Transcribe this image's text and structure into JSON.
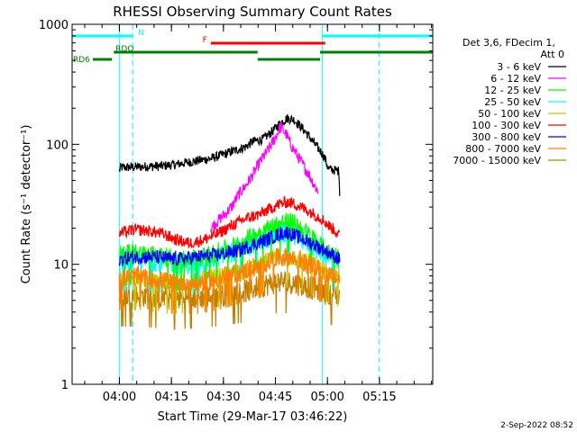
{
  "chart_data": {
    "type": "line",
    "title": "RHESSI Observing Summary Count Rates",
    "xlabel": "Start Time (29-Mar-17 03:46:22)",
    "ylabel": "Count Rate (s⁻¹ detector⁻¹)",
    "yscale": "log",
    "ylim": [
      1,
      1000
    ],
    "xlim_minutes": [
      0,
      104
    ],
    "yticks": [
      {
        "value": 1,
        "label": "1"
      },
      {
        "value": 10,
        "label": "10"
      },
      {
        "value": 100,
        "label": "100"
      },
      {
        "value": 1000,
        "label": "1000"
      }
    ],
    "xticks": [
      {
        "min": 13.6333,
        "label": "04:00"
      },
      {
        "min": 28.6333,
        "label": "04:15"
      },
      {
        "min": 43.6333,
        "label": "04:30"
      },
      {
        "min": 58.6333,
        "label": "04:45"
      },
      {
        "min": 73.6333,
        "label": "05:00"
      },
      {
        "min": 88.6333,
        "label": "05:15"
      }
    ],
    "legend": {
      "placement": "right",
      "header": [
        "Det 3,6, FDecim 1,",
        "Att 0"
      ],
      "entries": [
        {
          "label": "3 - 6 keV",
          "color": "#000000"
        },
        {
          "label": "6 - 12 keV",
          "color": "#ff00ff"
        },
        {
          "label": "12 - 25 keV",
          "color": "#00ff00"
        },
        {
          "label": "25 - 50 keV",
          "color": "#00ffff"
        },
        {
          "label": "50 - 100 keV",
          "color": "#c8c800"
        },
        {
          "label": "100 - 300 keV",
          "color": "#ff0000"
        },
        {
          "label": "300 - 800 keV",
          "color": "#0000ff"
        },
        {
          "label": "800 - 7000 keV",
          "color": "#ff8000"
        },
        {
          "label": "7000 - 15000 keV",
          "color": "#c08000"
        }
      ]
    },
    "flag_bars": [
      {
        "label": "N",
        "color": "#00ffff",
        "segments": [
          [
            0,
            17.5
          ],
          [
            72.2,
            104
          ]
        ]
      },
      {
        "label": "F",
        "color": "#ff0000",
        "segments": [
          [
            40,
            73
          ]
        ]
      },
      {
        "label": "RDO",
        "color": "#008000",
        "segments": [
          [
            12,
            53.5
          ],
          [
            71.5,
            104
          ]
        ]
      },
      {
        "label": "",
        "color": "#008000",
        "segments": [
          [
            53.5,
            71.5
          ]
        ]
      },
      {
        "label": "RD6",
        "color": "#008000",
        "segments": [
          [
            6,
            11.5
          ]
        ]
      }
    ],
    "vertical_markers": [
      {
        "min": 0,
        "color": "#00ffff",
        "style": "solid"
      },
      {
        "min": 13.6,
        "color": "#00ffff",
        "style": "solid"
      },
      {
        "min": 17.5,
        "color": "#00ffff",
        "style": "dashed"
      },
      {
        "min": 72.2,
        "color": "#00ffff",
        "style": "solid"
      },
      {
        "min": 88.5,
        "color": "#00ffff",
        "style": "dashed"
      }
    ],
    "series": [
      {
        "name": "3 - 6 keV",
        "color": "#000000",
        "noise": 0.04,
        "points": [
          [
            13.6,
            60
          ],
          [
            14,
            64
          ],
          [
            20,
            65
          ],
          [
            26,
            66
          ],
          [
            30,
            68
          ],
          [
            35,
            72
          ],
          [
            40,
            76
          ],
          [
            45,
            85
          ],
          [
            50,
            95
          ],
          [
            52,
            105
          ],
          [
            55,
            110
          ],
          [
            58,
            130
          ],
          [
            60,
            150
          ],
          [
            62,
            165
          ],
          [
            64,
            160
          ],
          [
            66,
            140
          ],
          [
            68,
            120
          ],
          [
            70,
            100
          ],
          [
            72,
            85
          ],
          [
            73,
            75
          ],
          [
            74,
            62
          ],
          [
            77,
            60
          ],
          [
            77.2,
            35
          ]
        ]
      },
      {
        "name": "6 - 12 keV",
        "color": "#ff00ff",
        "noise": 0.05,
        "points": [
          [
            40,
            20
          ],
          [
            42,
            23
          ],
          [
            44,
            26
          ],
          [
            46,
            30
          ],
          [
            48,
            38
          ],
          [
            50,
            45
          ],
          [
            52,
            55
          ],
          [
            54,
            70
          ],
          [
            56,
            85
          ],
          [
            58,
            105
          ],
          [
            59,
            120
          ],
          [
            60,
            140
          ],
          [
            61,
            130
          ],
          [
            62,
            118
          ],
          [
            63,
            100
          ],
          [
            64,
            90
          ],
          [
            66,
            72
          ],
          [
            68,
            58
          ],
          [
            70,
            45
          ],
          [
            71,
            40
          ]
        ]
      },
      {
        "name": "12 - 25 keV",
        "color": "#00ff00",
        "noise": 0.08,
        "points": [
          [
            13.6,
            12
          ],
          [
            18,
            12.5
          ],
          [
            24,
            12
          ],
          [
            30,
            11
          ],
          [
            34,
            11
          ],
          [
            40,
            12
          ],
          [
            45,
            13.5
          ],
          [
            50,
            16
          ],
          [
            55,
            19
          ],
          [
            60,
            22
          ],
          [
            62,
            23
          ],
          [
            64,
            22
          ],
          [
            66,
            20
          ],
          [
            68,
            18
          ],
          [
            70,
            16
          ],
          [
            72,
            14
          ],
          [
            74,
            12.5
          ],
          [
            76,
            12
          ],
          [
            77.2,
            11
          ]
        ]
      },
      {
        "name": "25 - 50 keV",
        "color": "#00ffff",
        "noise": 0.09,
        "points": [
          [
            13.6,
            11
          ],
          [
            20,
            11
          ],
          [
            26,
            10.5
          ],
          [
            32,
            10
          ],
          [
            38,
            10.5
          ],
          [
            44,
            12
          ],
          [
            50,
            14
          ],
          [
            55,
            16
          ],
          [
            60,
            18
          ],
          [
            63,
            18.5
          ],
          [
            66,
            16.5
          ],
          [
            70,
            14
          ],
          [
            74,
            11.5
          ],
          [
            77.2,
            10.5
          ]
        ]
      },
      {
        "name": "50 - 100 keV",
        "color": "#c8c800",
        "noise": 0.08,
        "points": [
          [
            13.6,
            7.5
          ],
          [
            20,
            7.5
          ],
          [
            28,
            7
          ],
          [
            36,
            7.2
          ],
          [
            44,
            8
          ],
          [
            50,
            9
          ],
          [
            56,
            10.5
          ],
          [
            60,
            11.5
          ],
          [
            64,
            11.5
          ],
          [
            68,
            10.5
          ],
          [
            72,
            9
          ],
          [
            77.2,
            8
          ]
        ]
      },
      {
        "name": "100 - 300 keV",
        "color": "#ff0000",
        "noise": 0.05,
        "points": [
          [
            13.6,
            18
          ],
          [
            18,
            19.5
          ],
          [
            22,
            19
          ],
          [
            26,
            18
          ],
          [
            30,
            16
          ],
          [
            34,
            15
          ],
          [
            38,
            16
          ],
          [
            42,
            18
          ],
          [
            46,
            21
          ],
          [
            50,
            24
          ],
          [
            54,
            26
          ],
          [
            58,
            30
          ],
          [
            60,
            32
          ],
          [
            62,
            33
          ],
          [
            64,
            32
          ],
          [
            66,
            30
          ],
          [
            68,
            28
          ],
          [
            70,
            26
          ],
          [
            72,
            24
          ],
          [
            74,
            21
          ],
          [
            76,
            19
          ],
          [
            77.2,
            17
          ]
        ]
      },
      {
        "name": "300 - 800 keV",
        "color": "#0000ff",
        "noise": 0.06,
        "points": [
          [
            13.6,
            11
          ],
          [
            18,
            11.5
          ],
          [
            24,
            11.5
          ],
          [
            30,
            11
          ],
          [
            36,
            11.5
          ],
          [
            42,
            12
          ],
          [
            48,
            13
          ],
          [
            52,
            14.5
          ],
          [
            56,
            16
          ],
          [
            60,
            18
          ],
          [
            62,
            18.5
          ],
          [
            64,
            17.5
          ],
          [
            66,
            16.5
          ],
          [
            70,
            14.5
          ],
          [
            74,
            12.5
          ],
          [
            77.2,
            11
          ]
        ]
      },
      {
        "name": "800 - 7000 keV",
        "color": "#ff8000",
        "noise": 0.08,
        "points": [
          [
            13.6,
            7.5
          ],
          [
            18,
            8
          ],
          [
            24,
            7.5
          ],
          [
            30,
            7
          ],
          [
            36,
            7
          ],
          [
            42,
            7.5
          ],
          [
            48,
            8.5
          ],
          [
            54,
            9.5
          ],
          [
            58,
            11
          ],
          [
            60,
            11.5
          ],
          [
            62,
            11.5
          ],
          [
            64,
            11
          ],
          [
            66,
            10.5
          ],
          [
            70,
            9.5
          ],
          [
            74,
            8
          ],
          [
            77.2,
            7.5
          ]
        ]
      },
      {
        "name": "7000 - 15000 keV",
        "color": "#c08000",
        "noise": 0.1,
        "points": [
          [
            13.6,
            5.5
          ],
          [
            20,
            5.5
          ],
          [
            28,
            5.2
          ],
          [
            36,
            5.3
          ],
          [
            44,
            5.6
          ],
          [
            50,
            6
          ],
          [
            56,
            6.8
          ],
          [
            60,
            7.2
          ],
          [
            64,
            7
          ],
          [
            68,
            6.5
          ],
          [
            72,
            6
          ],
          [
            77.2,
            5.5
          ]
        ]
      }
    ]
  },
  "footer": {
    "timestamp": "2-Sep-2022 08:52"
  }
}
